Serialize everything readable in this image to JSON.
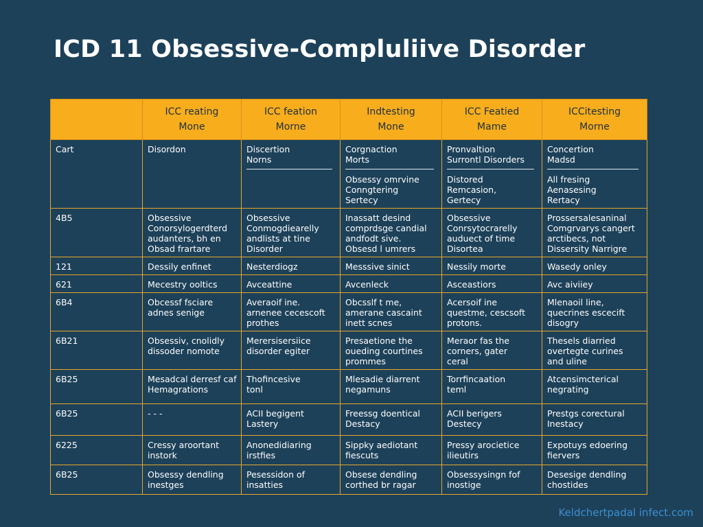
{
  "title": "ICD 11 Obsessive-Compluliive Disorder",
  "header": [
    "",
    "ICC reating\nMone",
    "ICC feation\nMorne",
    "Indtesting\nMone",
    "ICC Featied\nMame",
    "ICCitesting\nMorne"
  ],
  "rows": [
    {
      "code": "Cart",
      "cells": [
        {
          "lines": [
            "Disordon"
          ]
        },
        {
          "lines": [
            "Discertion",
            "Norns"
          ],
          "rule": "after2",
          "more": []
        },
        {
          "lines": [
            "Corgnaction",
            "Morts"
          ],
          "rule": "after2",
          "more": [
            "Obsessy omrvine",
            "Conngtering",
            "Sertecy"
          ]
        },
        {
          "lines": [
            "Pronvaltion",
            "Surrontl Disorders"
          ],
          "rule": "after2",
          "more": [
            "Distored",
            "Remcasion,",
            "Gertecy"
          ]
        },
        {
          "lines": [
            "Concertion",
            "Madsd"
          ],
          "rule": "after2",
          "more": [
            "All fresing",
            "Aenasesing",
            "Rertacy"
          ]
        }
      ]
    },
    {
      "code": "4B5",
      "cells": [
        {
          "lines": [
            "Obsessive",
            "Conorsylogerdterd",
            "audanters, bh en",
            "Obsad frartare"
          ]
        },
        {
          "lines": [
            "Obsessive",
            "Conmogdiearelly",
            "andlists at tine",
            "Disorder"
          ]
        },
        {
          "lines": [
            "Inassatt desind",
            "comprdsge candial",
            "andfodt sive.",
            "Obsesd l umrers"
          ]
        },
        {
          "lines": [
            "Obsessive",
            "Conrsytocrarelly",
            "auduect of time",
            "Disortea"
          ]
        },
        {
          "lines": [
            "Prossersalesaninal",
            "Comgrvarys cangert",
            "arctibecs, not",
            "Dissersity Narrigre"
          ]
        }
      ]
    },
    {
      "code": "121",
      "cells": [
        {
          "lines": [
            "Dessily enfinet"
          ]
        },
        {
          "lines": [
            "Nesterdiogz"
          ]
        },
        {
          "lines": [
            "Messsive sinict"
          ]
        },
        {
          "lines": [
            "Nessily morte"
          ]
        },
        {
          "lines": [
            "Wasedy onley"
          ]
        }
      ]
    },
    {
      "code": "621",
      "cells": [
        {
          "lines": [
            "Mecestry ooltics"
          ]
        },
        {
          "lines": [
            "Avceattine"
          ]
        },
        {
          "lines": [
            "Avcenleck"
          ]
        },
        {
          "lines": [
            "Asceastiors"
          ]
        },
        {
          "lines": [
            "Avc aiviiey"
          ]
        }
      ]
    },
    {
      "code": "6B4",
      "cells": [
        {
          "lines": [
            "Obcessf fsciare",
            "adnes senige"
          ]
        },
        {
          "lines": [
            "Averaoif ine.",
            "arnenee cecescoft",
            "prothes"
          ]
        },
        {
          "lines": [
            "Obcsslf t me,",
            "amerane cascaint",
            "inett scnes"
          ]
        },
        {
          "lines": [
            "Acersoif ine",
            "questme, cescsoft",
            "protons."
          ]
        },
        {
          "lines": [
            "Mlenaoil line,",
            "quecrines escecift",
            "disogry"
          ]
        }
      ]
    },
    {
      "code": "6B21",
      "cells": [
        {
          "lines": [
            "Obsessiv, cnolidly",
            "dissoder nomote"
          ]
        },
        {
          "lines": [
            "Merersisersiice",
            "disorder egiter"
          ]
        },
        {
          "lines": [
            "Presaetione the",
            "oueding courtines",
            "prommes"
          ]
        },
        {
          "lines": [
            "Meraor fas the",
            "corners, gater",
            "ceral"
          ]
        },
        {
          "lines": [
            "Thesels diarried",
            "overtegte curines",
            "and uline"
          ]
        }
      ]
    },
    {
      "code": "6B25",
      "cells": [
        {
          "lines": [
            "Mesadcal derresf caf",
            "Hemagrations"
          ]
        },
        {
          "lines": [
            "Thofincesive",
            "tonl"
          ]
        },
        {
          "lines": [
            "Mlesadie diarrent",
            "negamuns"
          ]
        },
        {
          "lines": [
            "Torrfincaation",
            "teml"
          ]
        },
        {
          "lines": [
            "Atcensimcterical",
            "negrating"
          ]
        }
      ]
    },
    {
      "code": "6B25",
      "cells": [
        {
          "lines": [
            "-   -     -"
          ]
        },
        {
          "lines": [
            "ACII begigent",
            "Lastery"
          ]
        },
        {
          "lines": [
            "Freessg doentical",
            "Destacy"
          ]
        },
        {
          "lines": [
            "ACII berigers",
            "Destecy"
          ]
        },
        {
          "lines": [
            "Prestgs corectural",
            "Inestacy"
          ]
        }
      ]
    },
    {
      "code": "6225",
      "cells": [
        {
          "lines": [
            "Cressy aroortant",
            "instork"
          ]
        },
        {
          "lines": [
            "Anonedidiaring",
            "irstfies"
          ]
        },
        {
          "lines": [
            "Sippky aediotant",
            "fiescuts"
          ]
        },
        {
          "lines": [
            "Pressy arocietice",
            "ilieutirs"
          ]
        },
        {
          "lines": [
            "Expotuys edoering",
            "fiervers"
          ]
        }
      ]
    },
    {
      "code": "6B25",
      "cells": [
        {
          "lines": [
            "Obsessy dendling",
            "inestges"
          ]
        },
        {
          "lines": [
            "Pesessidon of",
            "insatties"
          ]
        },
        {
          "lines": [
            "Obsese dendling",
            "corthed br ragar"
          ]
        },
        {
          "lines": [
            "Obsessysingn fof",
            "inostige"
          ]
        },
        {
          "lines": [
            "Desesige dendling",
            "chostides"
          ]
        }
      ]
    }
  ],
  "footer": "Keldchertpadal infect.com"
}
